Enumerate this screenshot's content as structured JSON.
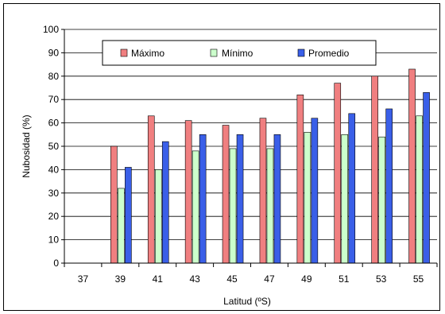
{
  "chart_data": {
    "type": "bar",
    "xlabel": "Latitud (ºS)",
    "ylabel": "Nubosidad (%)",
    "ylim": [
      0,
      100
    ],
    "yticks": [
      0,
      10,
      20,
      30,
      40,
      50,
      60,
      70,
      80,
      90,
      100
    ],
    "grid": true,
    "legend_position": "top",
    "categories": [
      "37",
      "39",
      "41",
      "43",
      "45",
      "47",
      "49",
      "51",
      "53",
      "55"
    ],
    "series": [
      {
        "name": "Máximo",
        "color": "#F07F80",
        "values": [
          0,
          50,
          63,
          61,
          59,
          62,
          72,
          77,
          80,
          83
        ]
      },
      {
        "name": "Mínimo",
        "color": "#CCFFCC",
        "values": [
          0,
          32,
          40,
          48,
          49,
          49,
          56,
          55,
          54,
          63
        ]
      },
      {
        "name": "Promedio",
        "color": "#3A5FE8",
        "values": [
          0,
          41,
          52,
          55,
          55,
          55,
          62,
          64,
          66,
          73
        ]
      }
    ]
  }
}
